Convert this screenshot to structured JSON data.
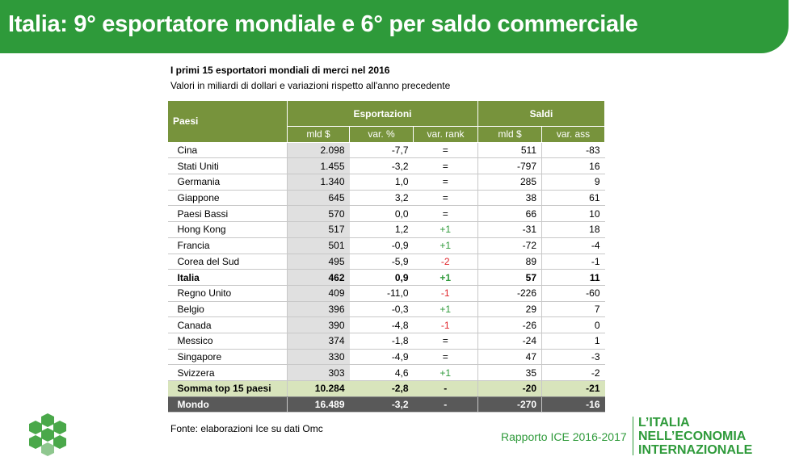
{
  "header": {
    "title": "Italia: 9° esportatore mondiale e 6° per saldo commerciale"
  },
  "table": {
    "title": "I primi 15 esportatori mondiali di merci nel 2016",
    "subtitle": "Valori in miliardi di dollari e variazioni rispetto all'anno precedente",
    "first_header": "Paesi",
    "group_headers": [
      "Esportazioni",
      "Saldi"
    ],
    "sub_headers": [
      "mld $",
      "var. %",
      "var. rank",
      "mld $",
      "var. ass"
    ],
    "rows": [
      [
        "Cina",
        "2.098",
        "-7,7",
        "=",
        "511",
        "-83"
      ],
      [
        "Stati Uniti",
        "1.455",
        "-3,2",
        "=",
        "-797",
        "16"
      ],
      [
        "Germania",
        "1.340",
        "1,0",
        "=",
        "285",
        "9"
      ],
      [
        "Giappone",
        "645",
        "3,2",
        "=",
        "38",
        "61"
      ],
      [
        "Paesi Bassi",
        "570",
        "0,0",
        "=",
        "66",
        "10"
      ],
      [
        "Hong Kong",
        "517",
        "1,2",
        "+1",
        "-31",
        "18"
      ],
      [
        "Francia",
        "501",
        "-0,9",
        "+1",
        "-72",
        "-4"
      ],
      [
        "Corea del Sud",
        "495",
        "-5,9",
        "-2",
        "89",
        "-1"
      ],
      [
        "Italia",
        "462",
        "0,9",
        "+1",
        "57",
        "11"
      ],
      [
        "Regno Unito",
        "409",
        "-11,0",
        "-1",
        "-226",
        "-60"
      ],
      [
        "Belgio",
        "396",
        "-0,3",
        "+1",
        "29",
        "7"
      ],
      [
        "Canada",
        "390",
        "-4,8",
        "-1",
        "-26",
        "0"
      ],
      [
        "Messico",
        "374",
        "-1,8",
        "=",
        "-24",
        "1"
      ],
      [
        "Singapore",
        "330",
        "-4,9",
        "=",
        "47",
        "-3"
      ],
      [
        "Svizzera",
        "303",
        "4,6",
        "+1",
        "35",
        "-2"
      ]
    ],
    "summary_row": [
      "Somma top 15 paesi",
      "10.284",
      "-2,8",
      "-",
      "-20",
      "-21"
    ],
    "world_row": [
      "Mondo",
      "16.489",
      "-3,2",
      "-",
      "-270",
      "-16"
    ]
  },
  "footer": {
    "source": "Fonte: elaborazioni Ice su dati Omc",
    "report": "Rapporto ICE 2016-2017",
    "brand": [
      "L’ITALIA",
      "NELL’ECONOMIA",
      "INTERNAZIONALE"
    ]
  }
}
